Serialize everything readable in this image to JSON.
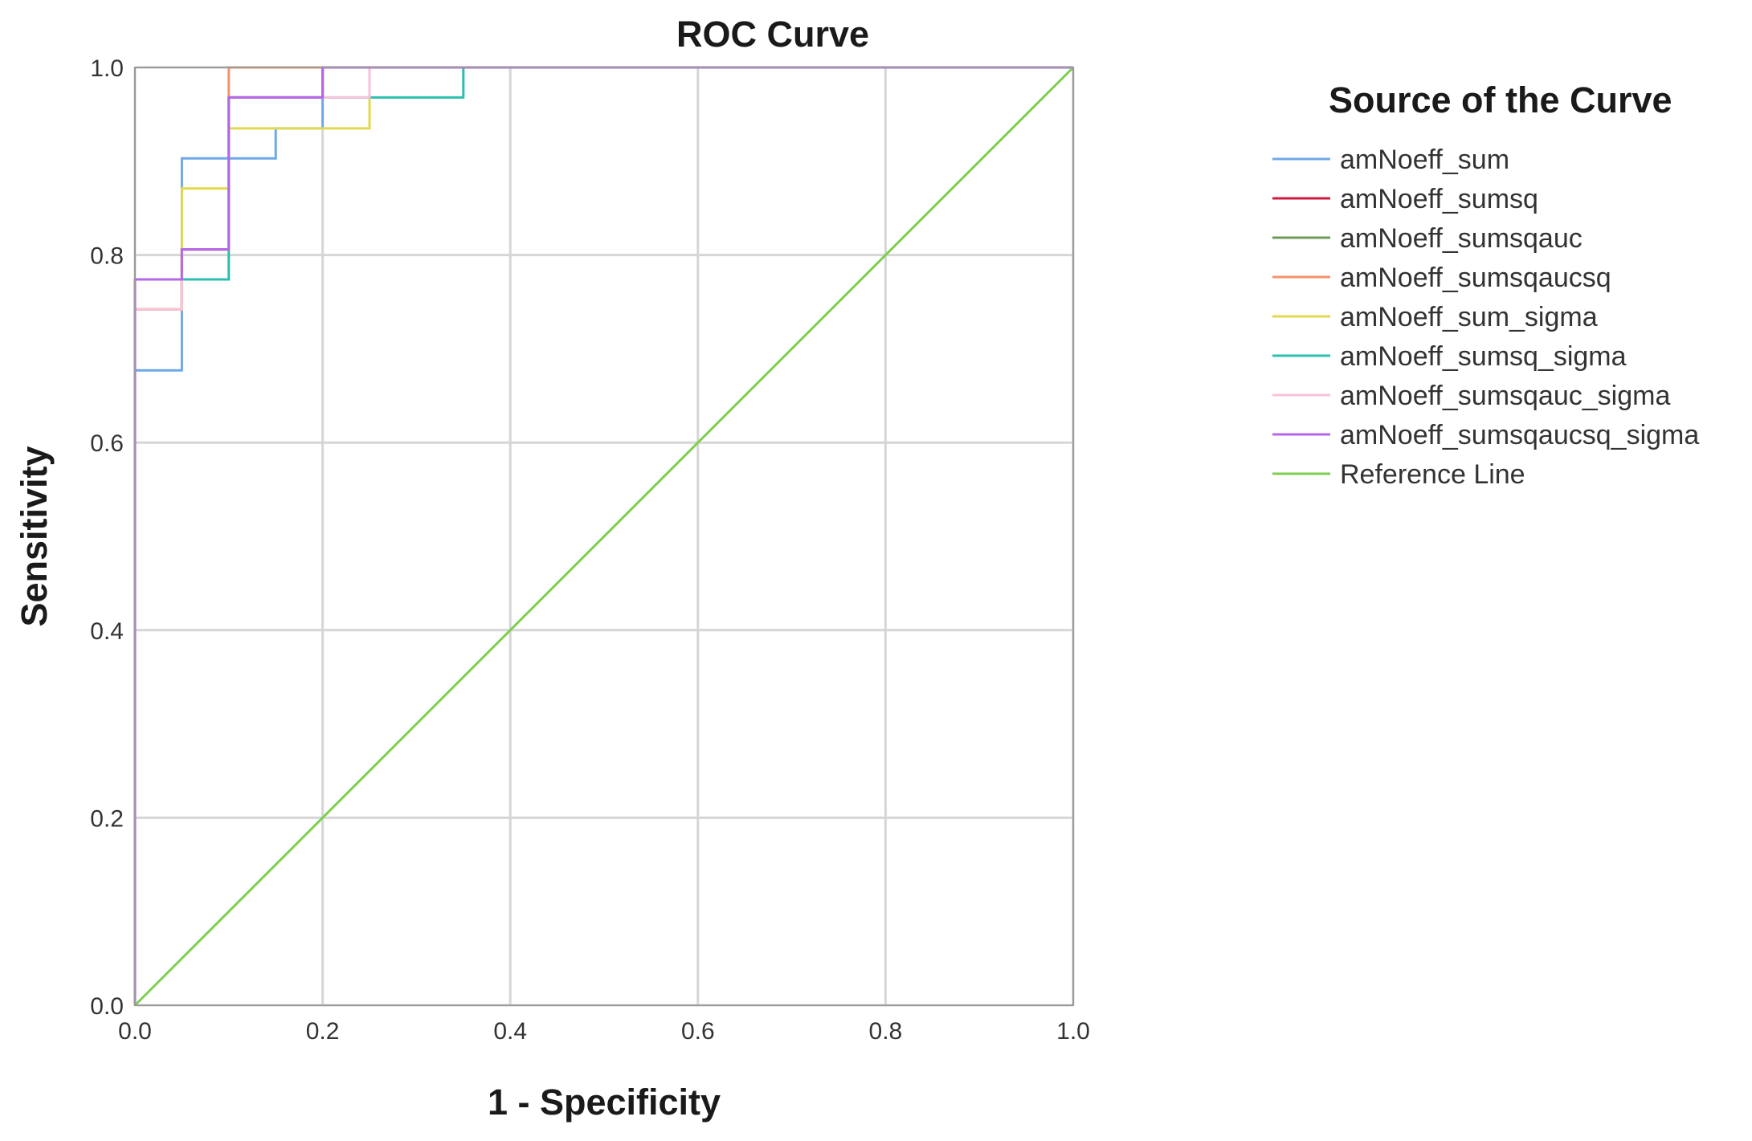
{
  "chart_data": {
    "type": "line",
    "title": "ROC Curve",
    "xlabel": "1 - Specificity",
    "ylabel": "Sensitivity",
    "xlim": [
      0,
      1
    ],
    "ylim": [
      0,
      1
    ],
    "x_ticks": [
      "0.0",
      "0.2",
      "0.4",
      "0.6",
      "0.8",
      "1.0"
    ],
    "y_ticks": [
      "0.0",
      "0.2",
      "0.4",
      "0.6",
      "0.8",
      "1.0"
    ],
    "grid": true,
    "legend_title": "Source of the Curve",
    "legend_position": "right",
    "series": [
      {
        "name": "amNoeff_sum",
        "color": "#6fa8e8",
        "x": [
          0,
          0,
          0.05,
          0.05,
          0.15,
          0.15,
          0.2,
          0.2,
          1
        ],
        "y": [
          0,
          0.677,
          0.677,
          0.903,
          0.903,
          0.935,
          0.935,
          1,
          1
        ]
      },
      {
        "name": "amNoeff_sumsq",
        "color": "#d11b3c",
        "x": [
          0,
          0,
          0.05,
          0.05,
          0.1,
          0.1,
          0.2,
          0.2,
          1
        ],
        "y": [
          0,
          0.742,
          0.742,
          0.806,
          0.806,
          0.968,
          0.968,
          1,
          1
        ]
      },
      {
        "name": "amNoeff_sumsqauc",
        "color": "#6b9a5b",
        "x": [
          0,
          0,
          0.05,
          0.05,
          0.1,
          0.1,
          0.2,
          0.2,
          1
        ],
        "y": [
          0,
          0.742,
          0.742,
          0.806,
          0.806,
          0.968,
          0.968,
          1,
          1
        ]
      },
      {
        "name": "amNoeff_sumsqaucsq",
        "color": "#f2936b",
        "x": [
          0,
          0,
          0.05,
          0.05,
          0.1,
          0.1,
          1
        ],
        "y": [
          0,
          0.742,
          0.742,
          0.806,
          0.806,
          1,
          1
        ]
      },
      {
        "name": "amNoeff_sum_sigma",
        "color": "#e3d94e",
        "x": [
          0,
          0,
          0.05,
          0.05,
          0.1,
          0.1,
          0.15,
          0.15,
          0.25,
          0.25,
          1
        ],
        "y": [
          0,
          0.742,
          0.742,
          0.871,
          0.871,
          0.935,
          0.935,
          0.935,
          0.935,
          1,
          1
        ]
      },
      {
        "name": "amNoeff_sumsq_sigma",
        "color": "#2bbfae",
        "x": [
          0,
          0,
          0.05,
          0.05,
          0.1,
          0.1,
          0.25,
          0.25,
          0.35,
          0.35,
          1
        ],
        "y": [
          0,
          0.774,
          0.774,
          0.774,
          0.774,
          0.968,
          0.968,
          0.968,
          0.968,
          1,
          1
        ]
      },
      {
        "name": "amNoeff_sumsqauc_sigma",
        "color": "#f6c2dc",
        "x": [
          0,
          0,
          0.05,
          0.05,
          0.1,
          0.1,
          0.25,
          0.25,
          1
        ],
        "y": [
          0,
          0.742,
          0.742,
          0.806,
          0.806,
          0.968,
          0.968,
          1,
          1
        ]
      },
      {
        "name": "amNoeff_sumsqaucsq_sigma",
        "color": "#b467e8",
        "x": [
          0,
          0,
          0.05,
          0.05,
          0.1,
          0.1,
          0.2,
          0.2,
          1
        ],
        "y": [
          0,
          0.774,
          0.774,
          0.806,
          0.806,
          0.968,
          0.968,
          1,
          1
        ]
      },
      {
        "name": "Reference Line",
        "color": "#7ccf4f",
        "x": [
          0,
          1
        ],
        "y": [
          0,
          1
        ]
      }
    ]
  }
}
